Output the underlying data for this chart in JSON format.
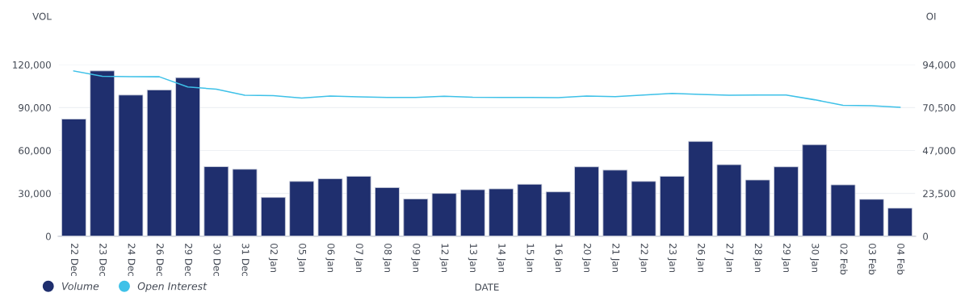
{
  "chart_data": {
    "type": "bar",
    "categories": [
      "22 Dec",
      "23 Dec",
      "24 Dec",
      "26 Dec",
      "29 Dec",
      "30 Dec",
      "31 Dec",
      "02 Jan",
      "05 Jan",
      "06 Jan",
      "07 Jan",
      "08 Jan",
      "09 Jan",
      "12 Jan",
      "13 Jan",
      "14 Jan",
      "15 Jan",
      "16 Jan",
      "20 Jan",
      "21 Jan",
      "22 Jan",
      "23 Jan",
      "26 Jan",
      "27 Jan",
      "28 Jan",
      "29 Jan",
      "30 Jan",
      "02 Feb",
      "03 Feb",
      "04 Feb"
    ],
    "series": [
      {
        "name": "Volume",
        "color": "#1f2f6e",
        "values": [
          82000,
          115700,
          98800,
          102400,
          111000,
          48700,
          46900,
          27200,
          38400,
          40300,
          42000,
          34100,
          26100,
          30000,
          32600,
          33200,
          36400,
          31100,
          48600,
          46300,
          38400,
          42000,
          66400,
          50100,
          39400,
          48600,
          64100,
          36000,
          25900,
          19700
        ]
      },
      {
        "name": "Open Interest",
        "type": "line",
        "axis": "y2",
        "color": "#3ec1e8",
        "values": [
          90600,
          87700,
          87500,
          87400,
          81800,
          80600,
          77300,
          77100,
          75700,
          76800,
          76400,
          76100,
          76100,
          76700,
          76200,
          76100,
          76100,
          76000,
          76800,
          76500,
          77400,
          78300,
          77700,
          77300,
          77400,
          77400,
          74800,
          71800,
          71500,
          70700
        ]
      }
    ],
    "xlabel": "DATE",
    "ylabel": "VOL",
    "y2label": "OI",
    "ylim": [
      0,
      120000
    ],
    "yticks": [
      {
        "value": 0,
        "label": "0"
      },
      {
        "value": 30000,
        "label": "30,000"
      },
      {
        "value": 60000,
        "label": "60,000"
      },
      {
        "value": 90000,
        "label": "90,000"
      },
      {
        "value": 120000,
        "label": "120,000"
      }
    ],
    "y2lim": [
      0,
      94000
    ],
    "y2ticks": [
      {
        "value": 0,
        "label": "0"
      },
      {
        "value": 23500,
        "label": "23,500"
      },
      {
        "value": 47000,
        "label": "47,000"
      },
      {
        "value": 70500,
        "label": "70,500"
      },
      {
        "value": 94000,
        "label": "94,000"
      }
    ],
    "grid": "y",
    "legend": "bottom left",
    "marker": "none",
    "line_style": "solid"
  }
}
